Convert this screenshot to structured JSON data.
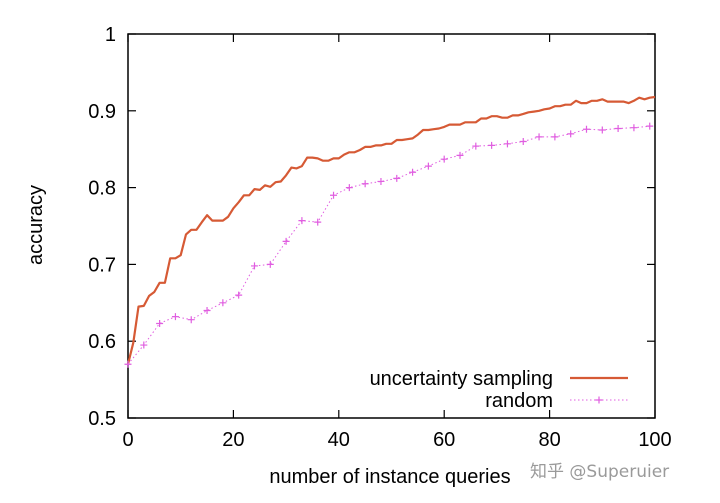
{
  "chart_data": {
    "type": "line",
    "xlabel": "number of instance queries",
    "ylabel": "accuracy",
    "xlim": [
      0,
      100
    ],
    "ylim": [
      0.5,
      1.0
    ],
    "x_ticks": [
      "0",
      "20",
      "40",
      "60",
      "80",
      "100"
    ],
    "y_ticks": [
      "0.5",
      "0.6",
      "0.7",
      "0.8",
      "0.9",
      "1"
    ],
    "grid": false,
    "legend_position": "bottom-right",
    "series": [
      {
        "name": "uncertainty sampling",
        "color": "#d65a35",
        "style": "solid",
        "x": [
          0,
          1,
          2,
          3,
          4,
          5,
          6,
          7,
          8,
          9,
          10,
          11,
          12,
          13,
          14,
          15,
          16,
          17,
          18,
          19,
          20,
          21,
          22,
          23,
          24,
          25,
          26,
          27,
          28,
          29,
          30,
          31,
          32,
          33,
          34,
          35,
          36,
          37,
          38,
          39,
          40,
          41,
          42,
          43,
          44,
          45,
          46,
          47,
          48,
          49,
          50,
          51,
          52,
          53,
          54,
          55,
          56,
          57,
          58,
          59,
          60,
          61,
          62,
          63,
          64,
          65,
          66,
          67,
          68,
          69,
          70,
          71,
          72,
          73,
          74,
          75,
          76,
          77,
          78,
          79,
          80,
          81,
          82,
          83,
          84,
          85,
          86,
          87,
          88,
          89,
          90,
          91,
          92,
          93,
          94,
          95,
          96,
          97,
          98,
          99,
          100
        ],
        "y": [
          0.57,
          0.598,
          0.645,
          0.646,
          0.659,
          0.664,
          0.676,
          0.676,
          0.708,
          0.708,
          0.712,
          0.739,
          0.745,
          0.745,
          0.755,
          0.764,
          0.757,
          0.757,
          0.757,
          0.762,
          0.773,
          0.781,
          0.79,
          0.79,
          0.798,
          0.797,
          0.803,
          0.801,
          0.807,
          0.808,
          0.816,
          0.826,
          0.825,
          0.828,
          0.839,
          0.839,
          0.838,
          0.835,
          0.835,
          0.838,
          0.838,
          0.843,
          0.846,
          0.846,
          0.849,
          0.853,
          0.853,
          0.855,
          0.855,
          0.857,
          0.857,
          0.862,
          0.862,
          0.863,
          0.864,
          0.869,
          0.875,
          0.875,
          0.876,
          0.877,
          0.879,
          0.882,
          0.882,
          0.882,
          0.885,
          0.885,
          0.885,
          0.89,
          0.89,
          0.893,
          0.893,
          0.891,
          0.891,
          0.894,
          0.894,
          0.896,
          0.898,
          0.899,
          0.9,
          0.902,
          0.903,
          0.906,
          0.906,
          0.908,
          0.908,
          0.913,
          0.91,
          0.91,
          0.913,
          0.913,
          0.915,
          0.912,
          0.912,
          0.912,
          0.912,
          0.91,
          0.913,
          0.917,
          0.915,
          0.917,
          0.918
        ]
      },
      {
        "name": "random",
        "color": "#e05ee0",
        "style": "dotted-plus",
        "x": [
          0,
          3,
          6,
          9,
          12,
          15,
          18,
          21,
          24,
          27,
          30,
          33,
          36,
          39,
          42,
          45,
          48,
          51,
          54,
          57,
          60,
          63,
          66,
          69,
          72,
          75,
          78,
          81,
          84,
          87,
          90,
          93,
          96,
          99
        ],
        "y": [
          0.57,
          0.595,
          0.623,
          0.632,
          0.628,
          0.64,
          0.65,
          0.66,
          0.698,
          0.7,
          0.73,
          0.757,
          0.755,
          0.79,
          0.8,
          0.805,
          0.808,
          0.812,
          0.82,
          0.828,
          0.837,
          0.842,
          0.854,
          0.855,
          0.857,
          0.86,
          0.866,
          0.866,
          0.87,
          0.876,
          0.875,
          0.877,
          0.878,
          0.88
        ]
      }
    ]
  },
  "watermark": "知乎 @Superuier"
}
